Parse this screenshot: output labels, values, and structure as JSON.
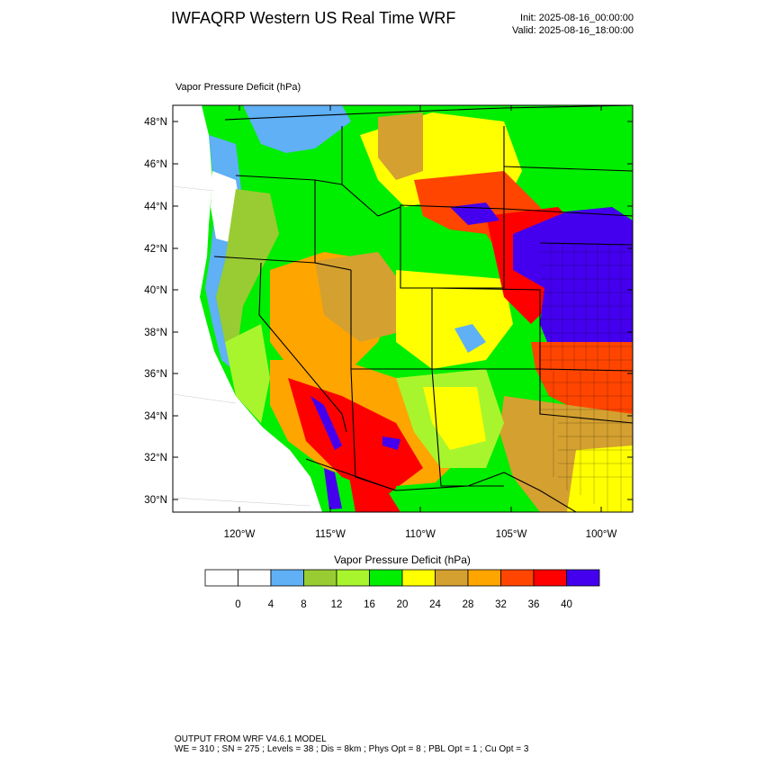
{
  "header": {
    "title": "IWFAQRP Western US Real Time WRF",
    "init": "Init: 2025-08-16_00:00:00",
    "valid": "Valid: 2025-08-16_18:00:00"
  },
  "map": {
    "field_label": "Vapor Pressure Deficit   (hPa)",
    "lat_labels": [
      "48°N",
      "46°N",
      "44°N",
      "42°N",
      "40°N",
      "38°N",
      "36°N",
      "34°N",
      "32°N",
      "30°N"
    ],
    "lon_labels": [
      "120°W",
      "115°W",
      "110°W",
      "105°W",
      "100°W"
    ],
    "region_colors": {
      "ocean": "#ffffff",
      "low": "#5fb0f5",
      "olive": "#99cc33",
      "lightgreen": "#a8f52e",
      "green": "#00ee00",
      "yellow": "#ffff00",
      "tan": "#d4a030",
      "orange": "#ffa500",
      "redorange": "#ff4500",
      "red": "#ff0000",
      "purple": "#4400ee"
    }
  },
  "colorbar": {
    "title": "Vapor Pressure Deficit  (hPa)",
    "colors": [
      "#ffffff",
      "#ffffff",
      "#5fb0f5",
      "#99cc33",
      "#a8f52e",
      "#00ee00",
      "#ffff00",
      "#d4a030",
      "#ffa500",
      "#ff4500",
      "#ff0000",
      "#4400ee"
    ],
    "tick_labels": [
      "0",
      "4",
      "8",
      "12",
      "16",
      "20",
      "24",
      "28",
      "32",
      "36",
      "40"
    ]
  },
  "footer": {
    "line1": "OUTPUT FROM WRF V4.6.1 MODEL",
    "line2": "WE = 310 ; SN = 275 ; Levels = 38 ; Dis = 8km ; Phys Opt = 8 ; PBL Opt = 1 ; Cu Opt = 3"
  }
}
